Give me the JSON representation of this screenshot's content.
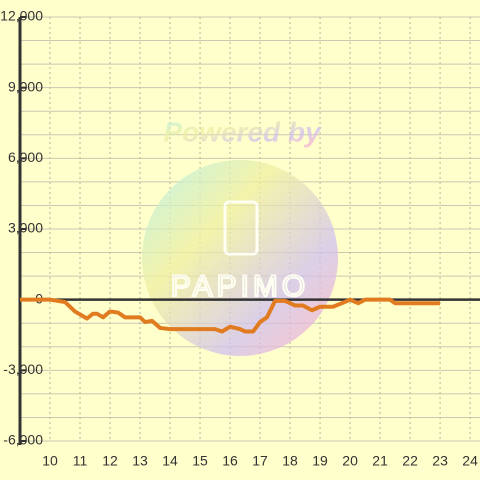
{
  "chart_data": {
    "type": "line",
    "watermark": [
      "Powered by",
      "PAPIMO"
    ],
    "x": [
      9.0,
      10.0,
      10.5,
      10.83,
      11.23,
      11.43,
      11.57,
      11.77,
      12.0,
      12.27,
      12.5,
      13.0,
      13.17,
      13.4,
      13.67,
      14.0,
      15.5,
      15.73,
      16.0,
      16.33,
      16.5,
      16.77,
      17.0,
      17.23,
      17.5,
      17.83,
      18.17,
      18.43,
      18.73,
      19.0,
      19.43,
      19.73,
      20.0,
      20.27,
      20.5,
      21.33,
      21.5,
      23.0
    ],
    "series": [
      {
        "color": "#e07b20",
        "values": [
          0,
          0,
          -100,
          -500,
          -800,
          -600,
          -600,
          -750,
          -500,
          -550,
          -750,
          -750,
          -950,
          -900,
          -1200,
          -1250,
          -1250,
          -1350,
          -1150,
          -1250,
          -1350,
          -1350,
          -950,
          -750,
          -50,
          -50,
          -250,
          -250,
          -450,
          -300,
          -300,
          -150,
          0,
          -150,
          0,
          0,
          -150,
          -150
        ]
      }
    ],
    "xlim": [
      9,
      24.33
    ],
    "xticks": [
      10,
      11,
      12,
      13,
      14,
      15,
      16,
      17,
      18,
      19,
      20,
      21,
      22,
      23,
      24
    ],
    "ylim": [
      -6000,
      12000
    ],
    "yticks": [
      {
        "value": -6000,
        "label": "-6,000"
      },
      {
        "value": -3000,
        "label": "-3,000"
      },
      0,
      {
        "value": 3000,
        "label": "3,000"
      },
      {
        "value": 6000,
        "label": "6,000"
      },
      {
        "value": 9000,
        "label": "9,000"
      },
      {
        "value": 12000,
        "label": "12,000"
      }
    ],
    "minor_yticks": [
      -5000,
      -4000,
      -2000,
      -1000,
      1000,
      2000,
      4000,
      5000,
      7000,
      8000,
      10000,
      11000
    ],
    "grid": true
  }
}
